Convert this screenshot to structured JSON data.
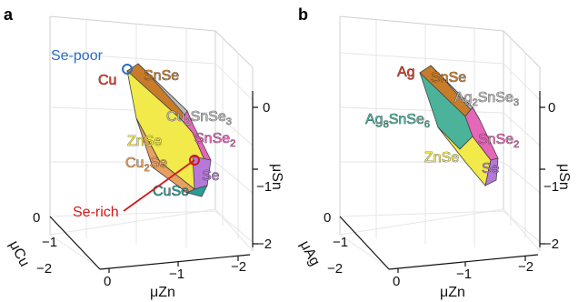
{
  "panels": [
    {
      "letter": "a",
      "x_axis": {
        "title": "μZn",
        "ticks": [
          "0",
          "−1",
          "−2"
        ]
      },
      "y_axis": {
        "title": "μCu",
        "ticks": [
          "0",
          "−1",
          "−2"
        ]
      },
      "z_axis": {
        "title": "μSn",
        "ticks": [
          "0",
          "−1",
          "−2"
        ]
      },
      "labels": {
        "se_poor": "Se-poor",
        "se_rich": "Se-rich",
        "cu": "Cu",
        "snse": "SnSe",
        "ternary_main": "Cu",
        "ternary_sub1": "2",
        "ternary_mid": "SnSe",
        "ternary_sub2": "3",
        "znse": "ZnSe",
        "snse2_main": "SnSe",
        "snse2_sub": "2",
        "cu2se_main": "Cu",
        "cu2se_sub": "2",
        "cu2se_tail": "Se",
        "se": "Se",
        "cuse": "CuSe"
      }
    },
    {
      "letter": "b",
      "x_axis": {
        "title": "μZn",
        "ticks": [
          "0",
          "−1",
          "−2"
        ]
      },
      "y_axis": {
        "title": "μAg",
        "ticks": [
          "0",
          "−1",
          "−2"
        ]
      },
      "z_axis": {
        "title": "μSn",
        "ticks": [
          "0",
          "−1",
          "−2"
        ]
      },
      "labels": {
        "ag": "Ag",
        "snse": "SnSe",
        "ternary_main": "Ag",
        "ternary_sub1": "2",
        "ternary_mid": "SnSe",
        "ternary_sub2": "3",
        "ag8_main": "Ag",
        "ag8_sub1": "8",
        "ag8_mid": "SnSe",
        "ag8_sub2": "6",
        "znse": "ZnSe",
        "snse2_main": "SnSe",
        "snse2_sub": "2",
        "se": "Se"
      }
    }
  ],
  "colors": {
    "cu": "#d9412b",
    "snse": "#c87c2a",
    "ternary": "#b9b9b9",
    "znse": "#f2e94a",
    "snse2": "#e567b8",
    "cu2se": "#e8a060",
    "se": "#b57ad8",
    "cuse": "#2a9d96",
    "ag8snse6": "#4bb39a",
    "se_poor": "#2b6cc4",
    "se_rich": "#d11a1a"
  }
}
